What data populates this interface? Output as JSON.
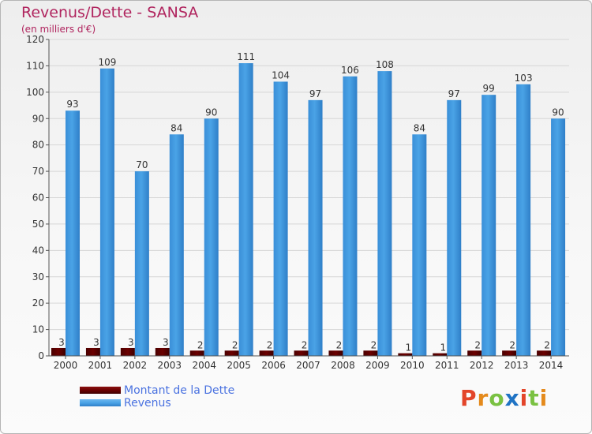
{
  "chart_data": {
    "type": "bar",
    "title": "Revenus/Dette - SANSA",
    "subtitle": "(en milliers d'€)",
    "categories": [
      "2000",
      "2001",
      "2002",
      "2003",
      "2004",
      "2005",
      "2006",
      "2007",
      "2008",
      "2009",
      "2010",
      "2011",
      "2012",
      "2013",
      "2014"
    ],
    "series": [
      {
        "name": "Montant de la Dette",
        "color": "#6b0000",
        "values": [
          3,
          3,
          3,
          3,
          2,
          2,
          2,
          2,
          2,
          2,
          1,
          1,
          2,
          2,
          2
        ]
      },
      {
        "name": "Revenus",
        "color": "#4aa3e6",
        "values": [
          93,
          109,
          70,
          84,
          90,
          111,
          104,
          97,
          106,
          108,
          84,
          97,
          99,
          103,
          90
        ]
      }
    ],
    "ylim": [
      0,
      120
    ],
    "yticks": [
      0,
      10,
      20,
      30,
      40,
      50,
      60,
      70,
      80,
      90,
      100,
      110,
      120
    ],
    "grid": true,
    "legend_position": "bottom-left"
  },
  "logo": {
    "letters": [
      "P",
      "r",
      "o",
      "x",
      "i",
      "t",
      "i"
    ],
    "colors": [
      "#e3452a",
      "#e48a1c",
      "#7ac142",
      "#1f73c4",
      "#e3452a",
      "#7ac142",
      "#e48a1c"
    ]
  }
}
